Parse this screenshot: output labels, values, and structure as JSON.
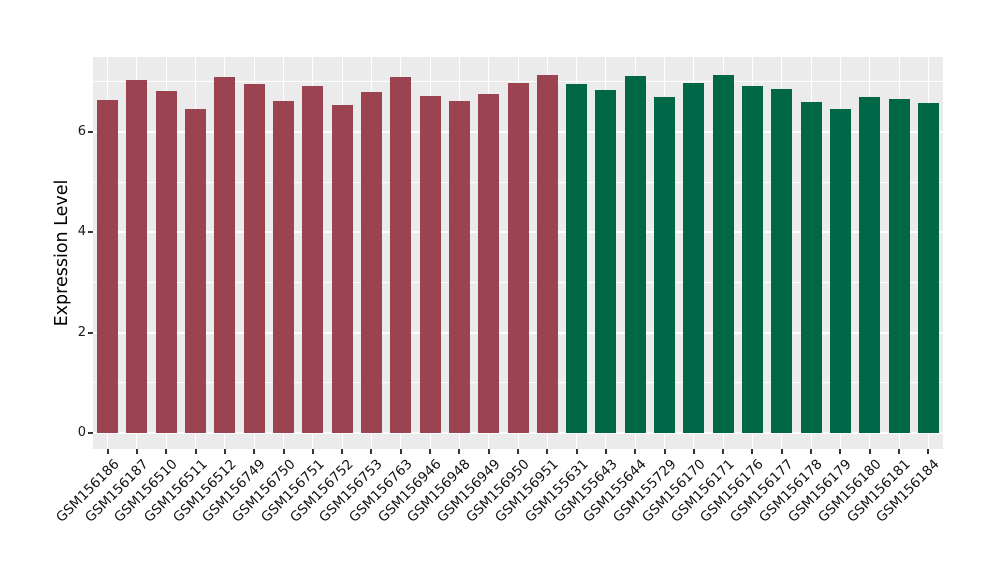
{
  "chart_data": {
    "type": "bar",
    "title": "",
    "xlabel": "",
    "ylabel": "Expression Level",
    "yticks": [
      0,
      2,
      4,
      6
    ],
    "yticks_minor": [
      1,
      3,
      5,
      7
    ],
    "ylim": [
      -0.32,
      7.48
    ],
    "grid": "on",
    "legend_position": "none",
    "panel_background": "#EBEBEB",
    "gridline_color": "#FFFFFF",
    "tick_color": "#333333",
    "group_colors": {
      "groupA": "#9C4351",
      "groupB": "#006847"
    },
    "bars": [
      {
        "label": "GSM156186",
        "value": 6.63,
        "group": "groupA"
      },
      {
        "label": "GSM156187",
        "value": 7.03,
        "group": "groupA"
      },
      {
        "label": "GSM156510",
        "value": 6.82,
        "group": "groupA"
      },
      {
        "label": "GSM156511",
        "value": 6.45,
        "group": "groupA"
      },
      {
        "label": "GSM156512",
        "value": 7.1,
        "group": "groupA"
      },
      {
        "label": "GSM156749",
        "value": 6.95,
        "group": "groupA"
      },
      {
        "label": "GSM156750",
        "value": 6.61,
        "group": "groupA"
      },
      {
        "label": "GSM156751",
        "value": 6.92,
        "group": "groupA"
      },
      {
        "label": "GSM156752",
        "value": 6.53,
        "group": "groupA"
      },
      {
        "label": "GSM156753",
        "value": 6.79,
        "group": "groupA"
      },
      {
        "label": "GSM156763",
        "value": 7.1,
        "group": "groupA"
      },
      {
        "label": "GSM156946",
        "value": 6.72,
        "group": "groupA"
      },
      {
        "label": "GSM156948",
        "value": 6.62,
        "group": "groupA"
      },
      {
        "label": "GSM156949",
        "value": 6.75,
        "group": "groupA"
      },
      {
        "label": "GSM156950",
        "value": 6.97,
        "group": "groupA"
      },
      {
        "label": "GSM156951",
        "value": 7.13,
        "group": "groupA"
      },
      {
        "label": "GSM155631",
        "value": 6.95,
        "group": "groupB"
      },
      {
        "label": "GSM155643",
        "value": 6.83,
        "group": "groupB"
      },
      {
        "label": "GSM155644",
        "value": 7.12,
        "group": "groupB"
      },
      {
        "label": "GSM155729",
        "value": 6.69,
        "group": "groupB"
      },
      {
        "label": "GSM156170",
        "value": 6.98,
        "group": "groupB"
      },
      {
        "label": "GSM156171",
        "value": 7.14,
        "group": "groupB"
      },
      {
        "label": "GSM156176",
        "value": 6.91,
        "group": "groupB"
      },
      {
        "label": "GSM156177",
        "value": 6.85,
        "group": "groupB"
      },
      {
        "label": "GSM156178",
        "value": 6.59,
        "group": "groupB"
      },
      {
        "label": "GSM156179",
        "value": 6.46,
        "group": "groupB"
      },
      {
        "label": "GSM156180",
        "value": 6.69,
        "group": "groupB"
      },
      {
        "label": "GSM156181",
        "value": 6.65,
        "group": "groupB"
      },
      {
        "label": "GSM156184",
        "value": 6.58,
        "group": "groupB"
      }
    ]
  }
}
